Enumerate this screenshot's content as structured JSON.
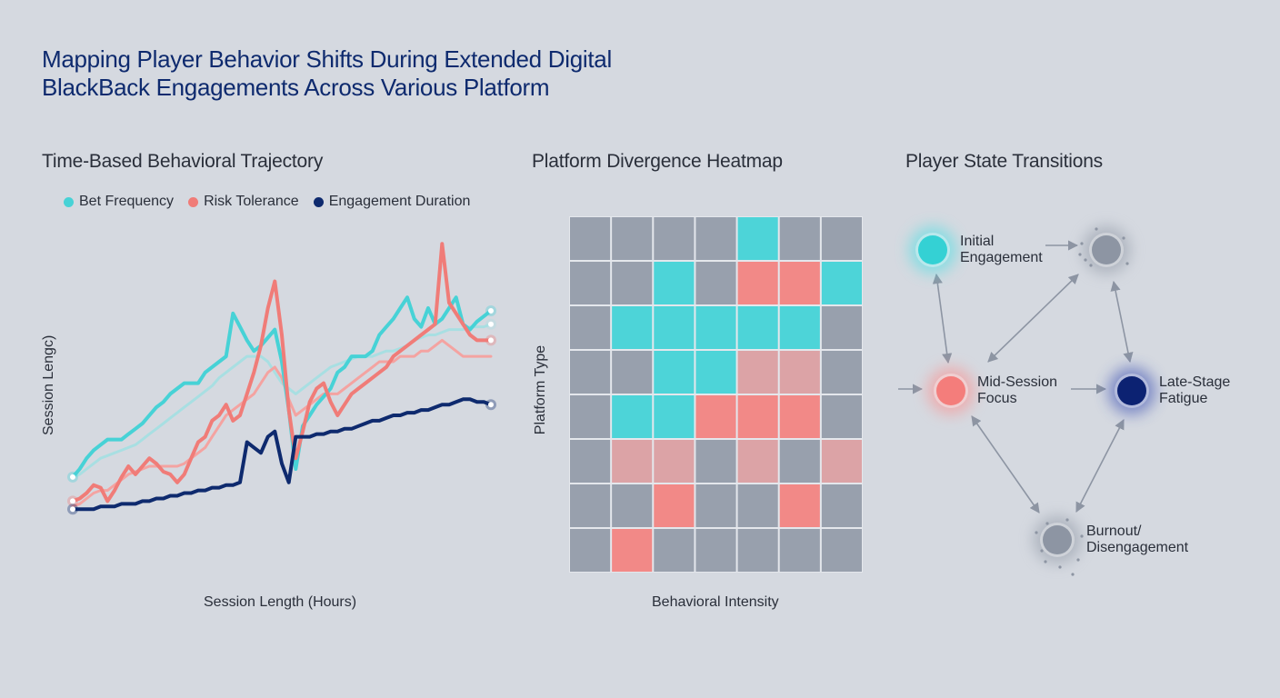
{
  "title_lines": [
    "Mapping Player Behavior Shifts During Extended Digital",
    "BlackBack Engagements Across Various Platform"
  ],
  "colors": {
    "teal": "#47d2d6",
    "salmon": "#f07c78",
    "navy": "#0e2a6e",
    "gray_cell": "#98a0ad",
    "pink_cell": "#dca3a6",
    "salmon_cell": "#f28987",
    "teal_cell": "#4dd4d8"
  },
  "chart_data": [
    {
      "type": "line",
      "title": "Time-Based Behavioral Trajectory",
      "xlabel": "Session Length (Hours)",
      "ylabel": "Session Lengc)",
      "legend_position": "top",
      "grid": false,
      "x": [
        0,
        1,
        2,
        3,
        4,
        5,
        6,
        7,
        8,
        9,
        10,
        11,
        12,
        13,
        14,
        15,
        16,
        17,
        18,
        19,
        20,
        21,
        22,
        23,
        24,
        25,
        26,
        27,
        28,
        29,
        30,
        31,
        32,
        33,
        34,
        35,
        36,
        37,
        38,
        39,
        40,
        41,
        42,
        43,
        44,
        45,
        46,
        47,
        48,
        49,
        50,
        51,
        52,
        53,
        54,
        55,
        56,
        57,
        58,
        59,
        60
      ],
      "ylim": [
        0,
        100
      ],
      "series": [
        {
          "name": "Bet Frequency",
          "color": "#47d2d6",
          "values": [
            17,
            20,
            24,
            27,
            29,
            31,
            31,
            31,
            33,
            35,
            37,
            40,
            43,
            45,
            48,
            50,
            52,
            52,
            52,
            56,
            58,
            60,
            62,
            78,
            73,
            68,
            64,
            66,
            69,
            72,
            60,
            42,
            20,
            36,
            40,
            44,
            47,
            50,
            56,
            58,
            62,
            62,
            62,
            64,
            70,
            73,
            76,
            80,
            84,
            76,
            73,
            80,
            74,
            76,
            80,
            84,
            74,
            72,
            75,
            77,
            79
          ],
          "line_width": 4
        },
        {
          "name": "Bet Frequency (trend)",
          "color": "#a8dfe2",
          "values": [
            17,
            18,
            20,
            22,
            24,
            25,
            26,
            27,
            28,
            29,
            31,
            33,
            35,
            37,
            39,
            41,
            43,
            45,
            47,
            49,
            51,
            54,
            56,
            58,
            60,
            62,
            62,
            62,
            60,
            56,
            52,
            50,
            48,
            50,
            52,
            54,
            56,
            58,
            59,
            60,
            61,
            62,
            62,
            62,
            63,
            64,
            64,
            65,
            66,
            68,
            69,
            70,
            70,
            71,
            72,
            72,
            72,
            73,
            73,
            73,
            74
          ],
          "line_width": 3
        },
        {
          "name": "Risk Tolerance",
          "color": "#f07c78",
          "values": [
            8,
            9,
            11,
            14,
            13,
            8,
            12,
            17,
            21,
            18,
            21,
            24,
            22,
            19,
            18,
            15,
            18,
            24,
            30,
            32,
            38,
            40,
            44,
            38,
            40,
            48,
            56,
            66,
            80,
            90,
            70,
            42,
            24,
            34,
            45,
            50,
            52,
            45,
            40,
            44,
            48,
            50,
            52,
            54,
            56,
            58,
            62,
            64,
            66,
            68,
            70,
            72,
            74,
            104,
            82,
            78,
            74,
            70,
            68,
            68,
            68
          ],
          "line_width": 4
        },
        {
          "name": "Risk Tolerance (trend)",
          "color": "#f4a3a1",
          "values": [
            6,
            7,
            9,
            11,
            12,
            12,
            14,
            16,
            18,
            19,
            20,
            21,
            21,
            21,
            21,
            21,
            22,
            24,
            26,
            28,
            32,
            36,
            40,
            42,
            44,
            46,
            48,
            52,
            56,
            58,
            54,
            46,
            40,
            42,
            44,
            46,
            48,
            48,
            48,
            50,
            52,
            54,
            56,
            58,
            60,
            60,
            60,
            62,
            62,
            62,
            64,
            64,
            66,
            68,
            66,
            64,
            62,
            62,
            62,
            62,
            62
          ],
          "line_width": 3
        },
        {
          "name": "Engagement Duration",
          "color": "#0e2a6e",
          "values": [
            5,
            5,
            5,
            5,
            6,
            6,
            6,
            7,
            7,
            7,
            8,
            8,
            9,
            9,
            10,
            10,
            11,
            11,
            12,
            12,
            13,
            13,
            14,
            14,
            15,
            30,
            28,
            26,
            32,
            34,
            22,
            15,
            32,
            32,
            32,
            33,
            33,
            34,
            34,
            35,
            35,
            36,
            37,
            38,
            38,
            39,
            40,
            40,
            41,
            41,
            42,
            42,
            43,
            44,
            44,
            45,
            46,
            46,
            45,
            45,
            44
          ],
          "line_width": 4
        }
      ]
    },
    {
      "type": "heatmap",
      "title": "Platform Divergence Heatmap",
      "xlabel": "Behavioral Intensity",
      "ylabel": "Platform Type",
      "rows": 8,
      "cols": 7,
      "legend": "",
      "cells": [
        [
          "g",
          "g",
          "g",
          "g",
          "t",
          "g",
          "g"
        ],
        [
          "g",
          "g",
          "t",
          "g",
          "s",
          "s",
          "t"
        ],
        [
          "g",
          "t",
          "t",
          "t",
          "t",
          "t",
          "g"
        ],
        [
          "g",
          "g",
          "t",
          "t",
          "p",
          "p",
          "g"
        ],
        [
          "g",
          "t",
          "t",
          "s",
          "s",
          "s",
          "g"
        ],
        [
          "g",
          "p",
          "p",
          "g",
          "p",
          "g",
          "p"
        ],
        [
          "g",
          "g",
          "s",
          "g",
          "g",
          "s",
          "g"
        ],
        [
          "g",
          "s",
          "g",
          "g",
          "g",
          "g",
          "g"
        ]
      ]
    },
    {
      "type": "diagram",
      "title": "Player State Transitions",
      "nodes": [
        {
          "id": "initial",
          "label_lines": [
            "Initial",
            "Engagement"
          ],
          "color": "#34d1d4",
          "glow": "#47e0e4"
        },
        {
          "id": "top-right",
          "label_lines": [],
          "color": "#8d95a3",
          "glow": "#8d95a3"
        },
        {
          "id": "mid",
          "label_lines": [
            "Mid-Session",
            "Focus"
          ],
          "color": "#f47d7b",
          "glow": "#ff8a88"
        },
        {
          "id": "late",
          "label_lines": [
            "Late-Stage",
            "Fatigue"
          ],
          "color": "#0c2272",
          "glow": "#3346b0"
        },
        {
          "id": "burnout",
          "label_lines": [
            "Burnout/",
            "Disengagement"
          ],
          "color": "#8d95a3",
          "glow": "#8d95a3"
        }
      ]
    }
  ]
}
